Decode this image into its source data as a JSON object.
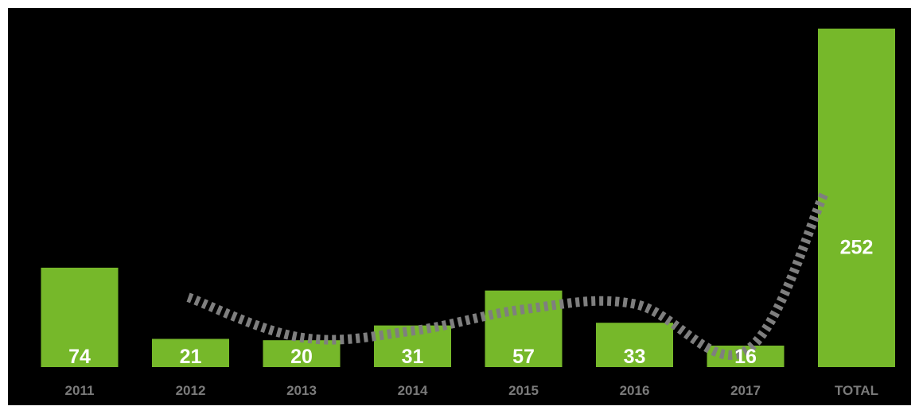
{
  "chart_data": {
    "type": "bar",
    "categories": [
      "2011",
      "2012",
      "2013",
      "2014",
      "2015",
      "2016",
      "2017",
      "TOTAL"
    ],
    "values": [
      74,
      21,
      20,
      31,
      57,
      33,
      16,
      252
    ],
    "data_labels": [
      "74",
      "21",
      "20",
      "31",
      "57",
      "33",
      "16",
      "252"
    ],
    "trend_line": {
      "style": "dashed",
      "color": "#7f7f7f",
      "x": [
        "2012",
        "2013",
        "2014",
        "2015",
        "2016",
        "2017",
        "TOTAL"
      ],
      "y": [
        52,
        22,
        27,
        43,
        47,
        12,
        130
      ]
    },
    "ylim": [
      0,
      252
    ],
    "grid": false,
    "colors": {
      "background": "#000000",
      "bar": "#76b82a",
      "bar_label": "#ffffff",
      "tick_label": "#7a7a7a",
      "trend_line": "#7f7f7f"
    }
  }
}
